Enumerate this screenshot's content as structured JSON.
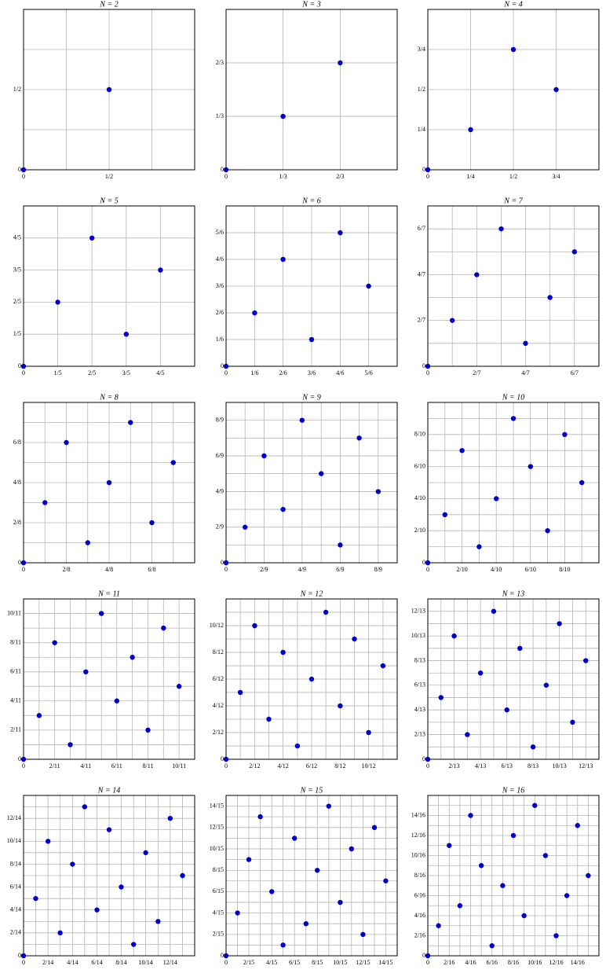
{
  "chart_data": [
    {
      "type": "scatter",
      "title": "N = 2",
      "x": [
        0,
        0.5
      ],
      "y": [
        0,
        0.5
      ],
      "xlim": [
        0,
        1
      ],
      "ylim": [
        0,
        1
      ],
      "xticks": [
        0,
        {
          "value": 0.5,
          "label": "1/2"
        }
      ],
      "yticks": [
        0,
        {
          "value": 0.5,
          "label": "1/2"
        }
      ],
      "minor": [
        0.25,
        0.75
      ],
      "color": "#0000cc"
    },
    {
      "type": "scatter",
      "title": "N = 3",
      "x": [
        0,
        0.333,
        0.667
      ],
      "y": [
        0,
        0.333,
        0.667
      ],
      "xlim": [
        0,
        1
      ],
      "ylim": [
        0,
        1
      ],
      "xticks": [
        0,
        {
          "value": 0.333,
          "label": "1/3"
        },
        {
          "value": 0.667,
          "label": "2/3"
        }
      ],
      "yticks": [
        0,
        {
          "value": 0.333,
          "label": "1/3"
        },
        {
          "value": 0.667,
          "label": "2/3"
        }
      ],
      "minor": [],
      "color": "#0000cc"
    },
    {
      "type": "scatter",
      "title": "N = 4",
      "x": [
        0,
        0.25,
        0.5,
        0.75
      ],
      "y": [
        0,
        0.25,
        0.75,
        0.5
      ],
      "xlim": [
        0,
        1
      ],
      "ylim": [
        0,
        1
      ],
      "xticks": [
        0,
        {
          "value": 0.25,
          "label": "1/4"
        },
        {
          "value": 0.5,
          "label": "1/2"
        },
        {
          "value": 0.75,
          "label": "3/4"
        }
      ],
      "yticks": [
        0,
        {
          "value": 0.25,
          "label": "1/4"
        },
        {
          "value": 0.5,
          "label": "1/2"
        },
        {
          "value": 0.75,
          "label": "3/4"
        }
      ],
      "minor": [],
      "color": "#0000cc"
    },
    {
      "type": "scatter",
      "title": "N = 5",
      "x": [
        0,
        0.2,
        0.4,
        0.6,
        0.8
      ],
      "y": [
        0,
        0.4,
        0.8,
        0.2,
        0.6
      ],
      "xlim": [
        0,
        1
      ],
      "ylim": [
        0,
        1
      ],
      "xticks": [
        0,
        {
          "value": 0.2,
          "label": "1/5"
        },
        {
          "value": 0.4,
          "label": "2/5"
        },
        {
          "value": 0.6,
          "label": "3/5"
        },
        {
          "value": 0.8,
          "label": "4/5"
        }
      ],
      "yticks": [
        0,
        {
          "value": 0.2,
          "label": "1/5"
        },
        {
          "value": 0.4,
          "label": "2/5"
        },
        {
          "value": 0.6,
          "label": "3/5"
        },
        {
          "value": 0.8,
          "label": "4/5"
        }
      ],
      "minor": [],
      "color": "#0000cc"
    },
    {
      "type": "scatter",
      "title": "N = 6",
      "x": [
        0,
        0.167,
        0.333,
        0.5,
        0.667,
        0.833
      ],
      "y": [
        0,
        0.333,
        0.667,
        0.167,
        0.833,
        0.5
      ],
      "xlim": [
        0,
        1
      ],
      "ylim": [
        0,
        1
      ],
      "xticks": [
        0,
        {
          "value": 0.167,
          "label": "1/6"
        },
        {
          "value": 0.333,
          "label": "2/6"
        },
        {
          "value": 0.5,
          "label": "3/6"
        },
        {
          "value": 0.667,
          "label": "4/6"
        },
        {
          "value": 0.833,
          "label": "5/6"
        }
      ],
      "yticks": [
        0,
        {
          "value": 0.167,
          "label": "1/6"
        },
        {
          "value": 0.333,
          "label": "2/6"
        },
        {
          "value": 0.5,
          "label": "3/6"
        },
        {
          "value": 0.667,
          "label": "4/6"
        },
        {
          "value": 0.833,
          "label": "5/6"
        }
      ],
      "minor": [],
      "color": "#0000cc"
    },
    {
      "type": "scatter",
      "title": "N = 7",
      "x": [
        0,
        0.143,
        0.286,
        0.429,
        0.571,
        0.714,
        0.857
      ],
      "y": [
        0,
        0.286,
        0.571,
        0.857,
        0.143,
        0.429,
        0.714
      ],
      "xlim": [
        0,
        1
      ],
      "ylim": [
        0,
        1
      ],
      "xticks": [
        0,
        {
          "value": 0.286,
          "label": "2/7"
        },
        {
          "value": 0.571,
          "label": "4/7"
        },
        {
          "value": 0.857,
          "label": "6/7"
        }
      ],
      "yticks": [
        0,
        {
          "value": 0.286,
          "label": "2/7"
        },
        {
          "value": 0.571,
          "label": "4/7"
        },
        {
          "value": 0.857,
          "label": "6/7"
        }
      ],
      "minor": [
        0.143,
        0.429,
        0.714
      ],
      "color": "#0000cc"
    },
    {
      "type": "scatter",
      "title": "N = 8",
      "x": [
        0,
        0.125,
        0.25,
        0.375,
        0.5,
        0.625,
        0.75,
        0.875
      ],
      "y": [
        0,
        0.375,
        0.75,
        0.125,
        0.5,
        0.875,
        0.25,
        0.625
      ],
      "xlim": [
        0,
        1
      ],
      "ylim": [
        0,
        1
      ],
      "xticks": [
        0,
        {
          "value": 0.25,
          "label": "2/8"
        },
        {
          "value": 0.5,
          "label": "4/8"
        },
        {
          "value": 0.75,
          "label": "6/8"
        }
      ],
      "yticks": [
        0,
        {
          "value": 0.25,
          "label": "2/8"
        },
        {
          "value": 0.5,
          "label": "4/8"
        },
        {
          "value": 0.75,
          "label": "6/8"
        }
      ],
      "minor": [
        0.125,
        0.375,
        0.625,
        0.875
      ],
      "color": "#0000cc"
    },
    {
      "type": "scatter",
      "title": "N = 9",
      "x": [
        0,
        0.111,
        0.222,
        0.333,
        0.444,
        0.556,
        0.667,
        0.778,
        0.889
      ],
      "y": [
        0,
        0.222,
        0.667,
        0.333,
        0.889,
        0.556,
        0.111,
        0.778,
        0.444
      ],
      "xlim": [
        0,
        1
      ],
      "ylim": [
        0,
        1
      ],
      "xticks": [
        0,
        {
          "value": 0.222,
          "label": "2/9"
        },
        {
          "value": 0.444,
          "label": "4/9"
        },
        {
          "value": 0.667,
          "label": "6/9"
        },
        {
          "value": 0.889,
          "label": "8/9"
        }
      ],
      "yticks": [
        0,
        {
          "value": 0.222,
          "label": "2/9"
        },
        {
          "value": 0.444,
          "label": "4/9"
        },
        {
          "value": 0.667,
          "label": "6/9"
        },
        {
          "value": 0.889,
          "label": "8/9"
        }
      ],
      "minor": [
        0.111,
        0.333,
        0.556,
        0.778
      ],
      "color": "#0000cc"
    },
    {
      "type": "scatter",
      "title": "N = 10",
      "x": [
        0,
        0.1,
        0.2,
        0.3,
        0.4,
        0.5,
        0.6,
        0.7,
        0.8,
        0.9
      ],
      "y": [
        0,
        0.3,
        0.7,
        0.1,
        0.4,
        0.9,
        0.6,
        0.2,
        0.8,
        0.5
      ],
      "xlim": [
        0,
        1
      ],
      "ylim": [
        0,
        1
      ],
      "xticks": [
        0,
        {
          "value": 0.2,
          "label": "2/10"
        },
        {
          "value": 0.4,
          "label": "4/10"
        },
        {
          "value": 0.6,
          "label": "6/10"
        },
        {
          "value": 0.8,
          "label": "8/10"
        }
      ],
      "yticks": [
        0,
        {
          "value": 0.2,
          "label": "2/10"
        },
        {
          "value": 0.4,
          "label": "4/10"
        },
        {
          "value": 0.6,
          "label": "6/10"
        },
        {
          "value": 0.8,
          "label": "8/10"
        }
      ],
      "minor": [
        0.1,
        0.3,
        0.5,
        0.7,
        0.9
      ],
      "color": "#0000cc"
    },
    {
      "type": "scatter",
      "title": "N = 11",
      "x": [
        0,
        0.091,
        0.182,
        0.273,
        0.364,
        0.455,
        0.545,
        0.636,
        0.727,
        0.818,
        0.909
      ],
      "y": [
        0,
        0.273,
        0.727,
        0.091,
        0.545,
        0.909,
        0.364,
        0.636,
        0.182,
        0.818,
        0.455
      ],
      "xlim": [
        0,
        1
      ],
      "ylim": [
        0,
        1
      ],
      "xticks": [
        0,
        {
          "value": 0.182,
          "label": "2/11"
        },
        {
          "value": 0.364,
          "label": "4/11"
        },
        {
          "value": 0.545,
          "label": "6/11"
        },
        {
          "value": 0.727,
          "label": "8/11"
        },
        {
          "value": 0.909,
          "label": "10/11"
        }
      ],
      "yticks": [
        0,
        {
          "value": 0.182,
          "label": "2/11"
        },
        {
          "value": 0.364,
          "label": "4/11"
        },
        {
          "value": 0.545,
          "label": "6/11"
        },
        {
          "value": 0.727,
          "label": "8/11"
        },
        {
          "value": 0.909,
          "label": "10/11"
        }
      ],
      "minor": [
        0.091,
        0.273,
        0.455,
        0.636,
        0.818
      ],
      "color": "#0000cc"
    },
    {
      "type": "scatter",
      "title": "N = 12",
      "x": [
        0,
        0.083,
        0.167,
        0.25,
        0.333,
        0.417,
        0.5,
        0.583,
        0.667,
        0.75,
        0.833,
        0.917
      ],
      "y": [
        0,
        0.417,
        0.833,
        0.25,
        0.667,
        0.083,
        0.5,
        0.917,
        0.333,
        0.75,
        0.167,
        0.583
      ],
      "xlim": [
        0,
        1
      ],
      "ylim": [
        0,
        1
      ],
      "xticks": [
        0,
        {
          "value": 0.167,
          "label": "2/12"
        },
        {
          "value": 0.333,
          "label": "4/12"
        },
        {
          "value": 0.5,
          "label": "6/12"
        },
        {
          "value": 0.667,
          "label": "8/12"
        },
        {
          "value": 0.833,
          "label": "10/12"
        }
      ],
      "yticks": [
        0,
        {
          "value": 0.167,
          "label": "2/12"
        },
        {
          "value": 0.333,
          "label": "4/12"
        },
        {
          "value": 0.5,
          "label": "6/12"
        },
        {
          "value": 0.667,
          "label": "8/12"
        },
        {
          "value": 0.833,
          "label": "10/12"
        }
      ],
      "minor": [
        0.083,
        0.25,
        0.417,
        0.583,
        0.75,
        0.917
      ],
      "color": "#0000cc"
    },
    {
      "type": "scatter",
      "title": "N = 13",
      "x": [
        0,
        0.077,
        0.154,
        0.231,
        0.308,
        0.385,
        0.462,
        0.538,
        0.615,
        0.692,
        0.769,
        0.846,
        0.923
      ],
      "y": [
        0,
        0.385,
        0.769,
        0.154,
        0.538,
        0.923,
        0.308,
        0.692,
        0.077,
        0.462,
        0.846,
        0.231,
        0.615
      ],
      "xlim": [
        0,
        1
      ],
      "ylim": [
        0,
        1
      ],
      "xticks": [
        0,
        {
          "value": 0.154,
          "label": "2/13"
        },
        {
          "value": 0.308,
          "label": "4/13"
        },
        {
          "value": 0.462,
          "label": "6/13"
        },
        {
          "value": 0.615,
          "label": "8/13"
        },
        {
          "value": 0.769,
          "label": "10/13"
        },
        {
          "value": 0.923,
          "label": "12/13"
        }
      ],
      "yticks": [
        0,
        {
          "value": 0.154,
          "label": "2/13"
        },
        {
          "value": 0.308,
          "label": "4/13"
        },
        {
          "value": 0.462,
          "label": "6/13"
        },
        {
          "value": 0.615,
          "label": "8/13"
        },
        {
          "value": 0.769,
          "label": "10/13"
        },
        {
          "value": 0.923,
          "label": "12/13"
        }
      ],
      "minor": [
        0.077,
        0.231,
        0.385,
        0.538,
        0.692,
        0.846
      ],
      "color": "#0000cc"
    },
    {
      "type": "scatter",
      "title": "N = 14",
      "x": [
        0,
        0.071,
        0.143,
        0.214,
        0.286,
        0.357,
        0.429,
        0.5,
        0.571,
        0.643,
        0.714,
        0.786,
        0.857,
        0.929
      ],
      "y": [
        0,
        0.357,
        0.714,
        0.143,
        0.571,
        0.929,
        0.286,
        0.786,
        0.429,
        0.071,
        0.643,
        0.214,
        0.857,
        0.5
      ],
      "xlim": [
        0,
        1
      ],
      "ylim": [
        0,
        1
      ],
      "xticks": [
        0,
        {
          "value": 0.143,
          "label": "2/14"
        },
        {
          "value": 0.286,
          "label": "4/14"
        },
        {
          "value": 0.429,
          "label": "6/14"
        },
        {
          "value": 0.571,
          "label": "8/14"
        },
        {
          "value": 0.714,
          "label": "10/14"
        },
        {
          "value": 0.857,
          "label": "12/14"
        }
      ],
      "yticks": [
        0,
        {
          "value": 0.143,
          "label": "2/14"
        },
        {
          "value": 0.286,
          "label": "4/14"
        },
        {
          "value": 0.429,
          "label": "6/14"
        },
        {
          "value": 0.571,
          "label": "8/14"
        },
        {
          "value": 0.714,
          "label": "10/14"
        },
        {
          "value": 0.857,
          "label": "12/14"
        }
      ],
      "minor": [
        0.071,
        0.214,
        0.357,
        0.5,
        0.643,
        0.786,
        0.929
      ],
      "color": "#0000cc"
    },
    {
      "type": "scatter",
      "title": "N = 15",
      "x": [
        0,
        0.067,
        0.133,
        0.2,
        0.267,
        0.333,
        0.4,
        0.467,
        0.533,
        0.6,
        0.667,
        0.733,
        0.8,
        0.867,
        0.933
      ],
      "y": [
        0,
        0.267,
        0.6,
        0.867,
        0.4,
        0.067,
        0.733,
        0.2,
        0.533,
        0.933,
        0.333,
        0.667,
        0.133,
        0.8,
        0.467
      ],
      "xlim": [
        0,
        1
      ],
      "ylim": [
        0,
        1
      ],
      "xticks": [
        0,
        {
          "value": 0.133,
          "label": "2/15"
        },
        {
          "value": 0.267,
          "label": "4/15"
        },
        {
          "value": 0.4,
          "label": "6/15"
        },
        {
          "value": 0.533,
          "label": "8/15"
        },
        {
          "value": 0.667,
          "label": "10/15"
        },
        {
          "value": 0.8,
          "label": "12/15"
        },
        {
          "value": 0.933,
          "label": "14/15"
        }
      ],
      "yticks": [
        0,
        {
          "value": 0.133,
          "label": "2/15"
        },
        {
          "value": 0.267,
          "label": "4/15"
        },
        {
          "value": 0.4,
          "label": "6/15"
        },
        {
          "value": 0.533,
          "label": "8/15"
        },
        {
          "value": 0.667,
          "label": "10/15"
        },
        {
          "value": 0.8,
          "label": "12/15"
        },
        {
          "value": 0.933,
          "label": "14/15"
        }
      ],
      "minor": [
        0.067,
        0.2,
        0.333,
        0.467,
        0.6,
        0.733,
        0.867
      ],
      "color": "#0000cc"
    },
    {
      "type": "scatter",
      "title": "N = 16",
      "x": [
        0,
        0.0625,
        0.125,
        0.1875,
        0.25,
        0.3125,
        0.375,
        0.4375,
        0.5,
        0.5625,
        0.625,
        0.6875,
        0.75,
        0.8125,
        0.875,
        0.9375
      ],
      "y": [
        0,
        0.1875,
        0.6875,
        0.3125,
        0.875,
        0.5625,
        0.0625,
        0.4375,
        0.75,
        0.25,
        0.9375,
        0.625,
        0.125,
        0.375,
        0.8125,
        0.5
      ],
      "xlim": [
        0,
        1
      ],
      "ylim": [
        0,
        1
      ],
      "xticks": [
        0,
        {
          "value": 0.125,
          "label": "2/16"
        },
        {
          "value": 0.25,
          "label": "4/16"
        },
        {
          "value": 0.375,
          "label": "6/16"
        },
        {
          "value": 0.5,
          "label": "8/16"
        },
        {
          "value": 0.625,
          "label": "10/16"
        },
        {
          "value": 0.75,
          "label": "12/16"
        },
        {
          "value": 0.875,
          "label": "14/16"
        }
      ],
      "yticks": [
        0,
        {
          "value": 0.125,
          "label": "2/16"
        },
        {
          "value": 0.25,
          "label": "4/16"
        },
        {
          "value": 0.375,
          "label": "6/16"
        },
        {
          "value": 0.5,
          "label": "8/16"
        },
        {
          "value": 0.625,
          "label": "10/16"
        },
        {
          "value": 0.75,
          "label": "12/16"
        },
        {
          "value": 0.875,
          "label": "14/16"
        }
      ],
      "minor": [
        0.0625,
        0.1875,
        0.3125,
        0.4375,
        0.5625,
        0.6875,
        0.8125,
        0.9375
      ],
      "color": "#0000cc"
    }
  ]
}
